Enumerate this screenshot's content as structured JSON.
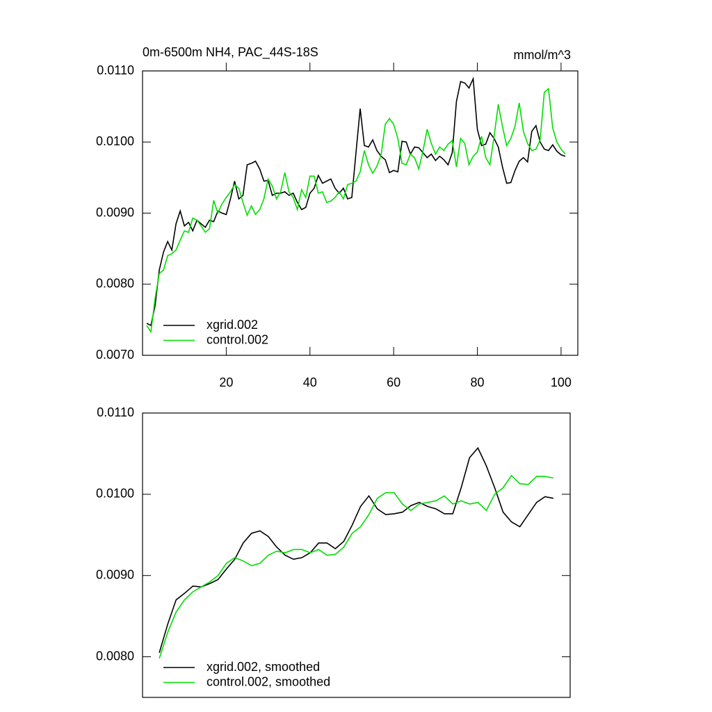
{
  "chart_data": [
    {
      "type": "line",
      "title": "0m-6500m NH4, PAC_44S-18S",
      "units": "mmol/m^3",
      "x": [
        1,
        2,
        3,
        4,
        5,
        6,
        7,
        8,
        9,
        10,
        11,
        12,
        13,
        14,
        15,
        16,
        17,
        18,
        19,
        20,
        21,
        22,
        23,
        24,
        25,
        26,
        27,
        28,
        29,
        30,
        31,
        32,
        33,
        34,
        35,
        36,
        37,
        38,
        39,
        40,
        41,
        42,
        43,
        44,
        45,
        46,
        47,
        48,
        49,
        50,
        51,
        52,
        53,
        54,
        55,
        56,
        57,
        58,
        59,
        60,
        61,
        62,
        63,
        64,
        65,
        66,
        67,
        68,
        69,
        70,
        71,
        72,
        73,
        74,
        75,
        76,
        77,
        78,
        79,
        80,
        81,
        82,
        83,
        84,
        85,
        86,
        87,
        88,
        89,
        90,
        91,
        92,
        93,
        94,
        95,
        96,
        97,
        98,
        99,
        100,
        101
      ],
      "series": [
        {
          "name": "xgrid.002",
          "color": "#000000",
          "values": [
            0.00745,
            0.00742,
            0.0077,
            0.0082,
            0.00845,
            0.0086,
            0.00848,
            0.00885,
            0.00903,
            0.00882,
            0.00887,
            0.00875,
            0.0089,
            0.00885,
            0.0088,
            0.0089,
            0.00888,
            0.00903,
            0.009,
            0.00898,
            0.0092,
            0.00945,
            0.0092,
            0.00925,
            0.00968,
            0.0097,
            0.00973,
            0.00962,
            0.00945,
            0.00946,
            0.00925,
            0.00928,
            0.00928,
            0.0093,
            0.00925,
            0.00928,
            0.00915,
            0.00905,
            0.00908,
            0.00928,
            0.00935,
            0.00953,
            0.00942,
            0.00945,
            0.00948,
            0.00935,
            0.00928,
            0.00935,
            0.0092,
            0.00922,
            0.00985,
            0.01047,
            0.00995,
            0.00993,
            0.01003,
            0.00988,
            0.0098,
            0.00975,
            0.00957,
            0.0096,
            0.00958,
            0.01001,
            0.01,
            0.00983,
            0.00993,
            0.00992,
            0.00985,
            0.00978,
            0.00983,
            0.00974,
            0.0098,
            0.00975,
            0.00968,
            0.00985,
            0.01057,
            0.01085,
            0.01083,
            0.01076,
            0.01089,
            0.01018,
            0.00995,
            0.00997,
            0.01013,
            0.01005,
            0.00993,
            0.00965,
            0.00942,
            0.00943,
            0.0096,
            0.00973,
            0.00978,
            0.00972,
            0.01015,
            0.01023,
            0.01,
            0.0099,
            0.00988,
            0.00996,
            0.00987,
            0.00982,
            0.0098
          ]
        },
        {
          "name": "control.002",
          "color": "#00dd00",
          "values": [
            0.00742,
            0.00733,
            0.0078,
            0.00815,
            0.0082,
            0.0084,
            0.00843,
            0.00848,
            0.00862,
            0.00875,
            0.00873,
            0.00893,
            0.0089,
            0.00882,
            0.00873,
            0.00878,
            0.00918,
            0.009,
            0.00913,
            0.00922,
            0.0093,
            0.0094,
            0.00935,
            0.00915,
            0.00897,
            0.0091,
            0.00898,
            0.00905,
            0.0092,
            0.00948,
            0.00938,
            0.0092,
            0.0093,
            0.00957,
            0.0093,
            0.00922,
            0.00905,
            0.00933,
            0.00922,
            0.00952,
            0.00952,
            0.00928,
            0.0093,
            0.00915,
            0.00917,
            0.00922,
            0.0093,
            0.0092,
            0.0094,
            0.00942,
            0.00945,
            0.00958,
            0.00988,
            0.00968,
            0.00956,
            0.00966,
            0.00982,
            0.01025,
            0.01033,
            0.01025,
            0.01005,
            0.0097,
            0.00968,
            0.00983,
            0.00978,
            0.00962,
            0.00987,
            0.01018,
            0.00998,
            0.00983,
            0.00993,
            0.00988,
            0.00997,
            0.01002,
            0.00965,
            0.01005,
            0.00998,
            0.00968,
            0.0098,
            0.00986,
            0.01008,
            0.00978,
            0.00968,
            0.01008,
            0.01053,
            0.01022,
            0.00995,
            0.01005,
            0.01022,
            0.01055,
            0.01015,
            0.00998,
            0.00988,
            0.0099,
            0.01003,
            0.0107,
            0.01075,
            0.0102,
            0.01,
            0.0099,
            0.00983
          ]
        }
      ],
      "xlim": [
        0,
        104
      ],
      "xticks": [
        20,
        40,
        60,
        80,
        100
      ],
      "ylim": [
        0.007,
        0.011
      ],
      "yticks": [
        {
          "value": 0.007,
          "label": "0.0070"
        },
        {
          "value": 0.008,
          "label": "0.0080"
        },
        {
          "value": 0.009,
          "label": "0.0090"
        },
        {
          "value": 0.01,
          "label": "0.0100"
        },
        {
          "value": 0.011,
          "label": "0.0110"
        }
      ],
      "legend": "lower left"
    },
    {
      "type": "line",
      "x": [
        4,
        6,
        8,
        10,
        12,
        14,
        16,
        18,
        20,
        22,
        24,
        26,
        28,
        30,
        32,
        34,
        36,
        38,
        40,
        42,
        44,
        46,
        48,
        50,
        52,
        54,
        56,
        58,
        60,
        62,
        64,
        66,
        68,
        70,
        72,
        74,
        76,
        78,
        80,
        82,
        84,
        86,
        88,
        90,
        92,
        94,
        96,
        98
      ],
      "series": [
        {
          "name": "xgrid.002, smoothed",
          "color": "#000000",
          "values": [
            0.00805,
            0.0084,
            0.0087,
            0.00878,
            0.00887,
            0.00886,
            0.0089,
            0.00895,
            0.00908,
            0.0092,
            0.0094,
            0.00952,
            0.00955,
            0.00948,
            0.00935,
            0.00925,
            0.0092,
            0.00922,
            0.00928,
            0.0094,
            0.0094,
            0.00933,
            0.00942,
            0.00962,
            0.00985,
            0.00998,
            0.00982,
            0.00975,
            0.00976,
            0.00978,
            0.00986,
            0.0099,
            0.00985,
            0.00982,
            0.00976,
            0.00976,
            0.01008,
            0.01045,
            0.01057,
            0.01035,
            0.01008,
            0.00978,
            0.00966,
            0.0096,
            0.00975,
            0.0099,
            0.00997,
            0.00995
          ]
        },
        {
          "name": "control.002, smoothed",
          "color": "#00dd00",
          "values": [
            0.00798,
            0.0083,
            0.00855,
            0.0087,
            0.0088,
            0.00886,
            0.00892,
            0.009,
            0.00915,
            0.00922,
            0.00918,
            0.00912,
            0.00915,
            0.00925,
            0.0093,
            0.00928,
            0.00932,
            0.00932,
            0.00928,
            0.00932,
            0.00925,
            0.00926,
            0.00935,
            0.00952,
            0.0096,
            0.00975,
            0.00995,
            0.01002,
            0.01002,
            0.00988,
            0.0098,
            0.00988,
            0.0099,
            0.00992,
            0.00998,
            0.00988,
            0.00992,
            0.00988,
            0.0099,
            0.0098,
            0.01,
            0.01008,
            0.01023,
            0.01013,
            0.01012,
            0.01022,
            0.01022,
            0.0102
          ]
        }
      ],
      "xlim": [
        0,
        102
      ],
      "ylim": [
        0.0075,
        0.011
      ],
      "yticks": [
        {
          "value": 0.008,
          "label": "0.0080"
        },
        {
          "value": 0.009,
          "label": "0.0090"
        },
        {
          "value": 0.01,
          "label": "0.0100"
        },
        {
          "value": 0.011,
          "label": "0.0110"
        }
      ],
      "legend": "lower left"
    }
  ]
}
